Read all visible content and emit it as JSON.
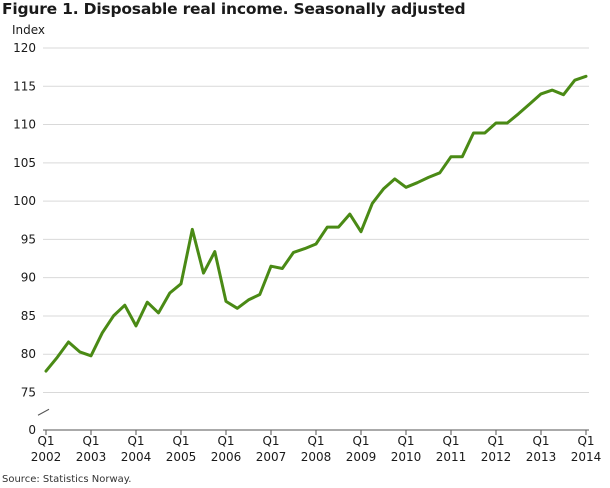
{
  "title": "Figure 1. Disposable real income. Seasonally adjusted",
  "source": "Source: Statistics Norway.",
  "colors": {
    "line": "#4a8a15",
    "grid": "#d9d9d9",
    "axis": "#555555"
  },
  "chart_data": {
    "type": "line",
    "title": "Figure 1. Disposable real income. Seasonally adjusted",
    "ylabel": "Index",
    "xlabel": "",
    "ylim": [
      0,
      120
    ],
    "axis_break": [
      0,
      75
    ],
    "yticks": [
      0,
      75,
      80,
      85,
      90,
      95,
      100,
      105,
      110,
      115,
      120
    ],
    "grid": true,
    "xticks": [
      {
        "q": "Q1",
        "year": "2002"
      },
      {
        "q": "Q1",
        "year": "2003"
      },
      {
        "q": "Q1",
        "year": "2004"
      },
      {
        "q": "Q1",
        "year": "2005"
      },
      {
        "q": "Q1",
        "year": "2006"
      },
      {
        "q": "Q1",
        "year": "2007"
      },
      {
        "q": "Q1",
        "year": "2008"
      },
      {
        "q": "Q1",
        "year": "2009"
      },
      {
        "q": "Q1",
        "year": "2010"
      },
      {
        "q": "Q1",
        "year": "2011"
      },
      {
        "q": "Q1",
        "year": "2012"
      },
      {
        "q": "Q1",
        "year": "2013"
      },
      {
        "q": "Q1",
        "year": "2014"
      }
    ],
    "x": [
      "2002Q1",
      "2002Q2",
      "2002Q3",
      "2002Q4",
      "2003Q1",
      "2003Q2",
      "2003Q3",
      "2003Q4",
      "2004Q1",
      "2004Q2",
      "2004Q3",
      "2004Q4",
      "2005Q1",
      "2005Q2",
      "2005Q3",
      "2005Q4",
      "2006Q1",
      "2006Q2",
      "2006Q3",
      "2006Q4",
      "2007Q1",
      "2007Q2",
      "2007Q3",
      "2007Q4",
      "2008Q1",
      "2008Q2",
      "2008Q3",
      "2008Q4",
      "2009Q1",
      "2009Q2",
      "2009Q3",
      "2009Q4",
      "2010Q1",
      "2010Q2",
      "2010Q3",
      "2010Q4",
      "2011Q1",
      "2011Q2",
      "2011Q3",
      "2011Q4",
      "2012Q1",
      "2012Q2",
      "2012Q3",
      "2012Q4",
      "2013Q1",
      "2013Q2",
      "2013Q3",
      "2013Q4",
      "2014Q1"
    ],
    "series": [
      {
        "values": [
          77.8,
          79.6,
          81.6,
          80.3,
          79.8,
          82.8,
          85.0,
          86.4,
          83.7,
          86.8,
          85.4,
          88.0,
          89.2,
          96.3,
          90.6,
          93.4,
          86.9,
          86.0,
          87.1,
          87.8,
          91.5,
          91.2,
          93.3,
          93.8,
          94.4,
          96.6,
          96.6,
          98.3,
          96.0,
          99.7,
          101.6,
          102.9,
          101.8,
          102.4,
          103.1,
          103.7,
          105.8,
          105.8,
          108.9,
          108.9,
          110.2,
          110.2,
          111.4,
          112.7,
          114.0,
          114.5,
          113.9,
          115.8,
          116.3
        ]
      }
    ]
  }
}
